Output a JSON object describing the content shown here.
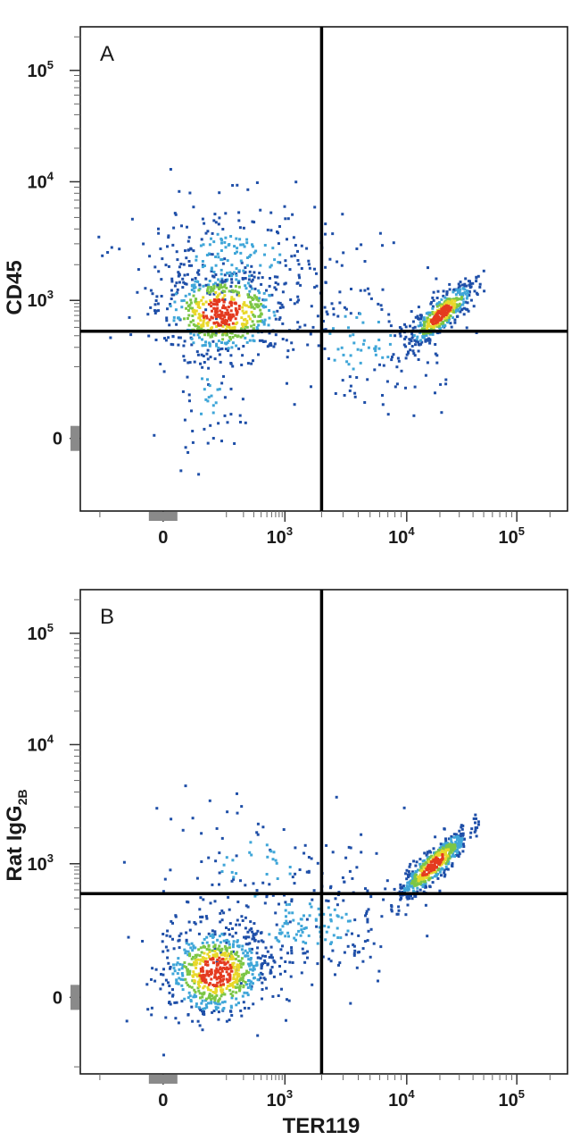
{
  "chart_data": [
    {
      "type": "scatter",
      "panel_label": "A",
      "xlabel": "",
      "ylabel": "CD45",
      "x_scale": "biexponential",
      "y_scale": "biexponential",
      "x_ticks": [
        {
          "value": 0,
          "label": "0"
        },
        {
          "value": 1000,
          "label": "10",
          "exp": "3"
        },
        {
          "value": 10000,
          "label": "10",
          "exp": "4"
        },
        {
          "value": 100000,
          "label": "10",
          "exp": "5"
        }
      ],
      "y_ticks": [
        {
          "value": 0,
          "label": "0"
        },
        {
          "value": 1000,
          "label": "10",
          "exp": "3"
        },
        {
          "value": 10000,
          "label": "10",
          "exp": "4"
        },
        {
          "value": 100000,
          "label": "10",
          "exp": "5"
        }
      ],
      "quadrant_gates": {
        "x": 2000,
        "y": 350
      },
      "populations": [
        {
          "name": "",
          "center": [
            80,
            700
          ],
          "count": 620,
          "spread": [
            0.55,
            0.38
          ]
        },
        {
          "name": "",
          "center": [
            20000,
            650
          ],
          "count": 480,
          "spread": [
            0.28,
            0.28
          ]
        },
        {
          "name": "",
          "center": [
            150,
            2500
          ],
          "count": 260,
          "spread": [
            0.9,
            0.5
          ]
        },
        {
          "name": "",
          "center": [
            40,
            30
          ],
          "count": 60,
          "spread": [
            0.3,
            0.5
          ]
        },
        {
          "name": "",
          "center": [
            4000,
            250
          ],
          "count": 140,
          "spread": [
            0.7,
            0.6
          ]
        }
      ]
    },
    {
      "type": "scatter",
      "panel_label": "B",
      "xlabel": "TER119",
      "ylabel": "Rat IgG",
      "ylabel_sub": "2B",
      "x_scale": "biexponential",
      "y_scale": "biexponential",
      "x_ticks": [
        {
          "value": 0,
          "label": "0"
        },
        {
          "value": 1000,
          "label": "10",
          "exp": "3"
        },
        {
          "value": 10000,
          "label": "10",
          "exp": "4"
        },
        {
          "value": 100000,
          "label": "10",
          "exp": "5"
        }
      ],
      "y_ticks": [
        {
          "value": 0,
          "label": "0"
        },
        {
          "value": 1000,
          "label": "10",
          "exp": "3"
        },
        {
          "value": 10000,
          "label": "10",
          "exp": "4"
        },
        {
          "value": 100000,
          "label": "10",
          "exp": "5"
        }
      ],
      "quadrant_gates": {
        "x": 2000,
        "y": 350
      },
      "populations": [
        {
          "name": "",
          "center": [
            60,
            15
          ],
          "count": 700,
          "spread": [
            0.45,
            0.4
          ]
        },
        {
          "name": "",
          "center": [
            17000,
            1000
          ],
          "count": 520,
          "spread": [
            0.3,
            0.3
          ]
        },
        {
          "name": "",
          "center": [
            1500,
            120
          ],
          "count": 240,
          "spread": [
            0.9,
            0.5
          ]
        },
        {
          "name": "",
          "center": [
            300,
            900
          ],
          "count": 90,
          "spread": [
            0.8,
            0.6
          ]
        }
      ]
    }
  ],
  "colors": {
    "low_density": "#1f4fa8",
    "mid_density": "#3fa6d8",
    "high_density": "#7cc646",
    "higher_density": "#e8d82a",
    "peak_density": "#e43a1f",
    "gate_line": "#000000",
    "frame": "#1a1a1a"
  }
}
